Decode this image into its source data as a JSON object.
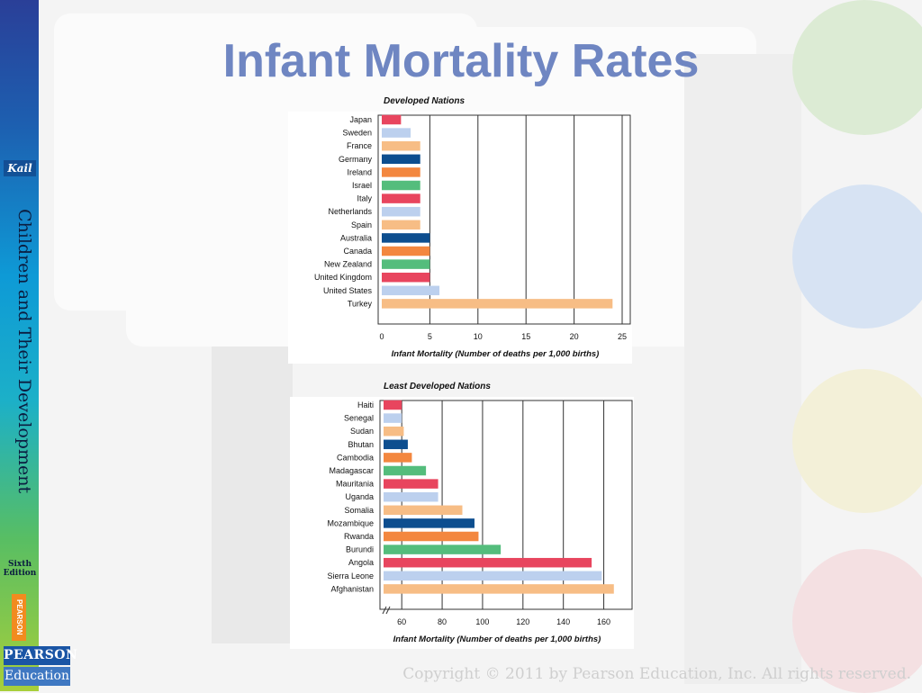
{
  "slide": {
    "title": "Infant Mortality Rates",
    "copyright": "Copyright © 2011 by Pearson Education, Inc. All rights reserved."
  },
  "sidebar": {
    "author": "Kail",
    "book_title": "Children and Their Development",
    "edition_line1": "Sixth",
    "edition_line2": "Edition",
    "publisher_vertical": "PEARSON",
    "logo_top": "PEARSON",
    "logo_bottom": "Education"
  },
  "colors": {
    "red": "#e8455e",
    "light_blue": "#bcd0ee",
    "peach": "#f7bd85",
    "navy": "#0d4e8f",
    "orange": "#f3873f",
    "green": "#54bd7c"
  },
  "chart_data": [
    {
      "type": "bar",
      "orientation": "horizontal",
      "title": "Developed Nations",
      "xlabel": "Infant Mortality (Number of deaths per 1,000 births)",
      "xlim": [
        0,
        25
      ],
      "xticks": [
        0,
        5,
        10,
        15,
        20,
        25
      ],
      "grid": true,
      "categories": [
        "Japan",
        "Sweden",
        "France",
        "Germany",
        "Ireland",
        "Israel",
        "Italy",
        "Netherlands",
        "Spain",
        "Australia",
        "Canada",
        "New Zealand",
        "United Kingdom",
        "United States",
        "Turkey"
      ],
      "values": [
        2,
        3,
        4,
        4,
        4,
        4,
        4,
        4,
        4,
        5,
        5,
        5,
        5,
        6,
        24
      ],
      "bar_colors": [
        "#e8455e",
        "#bcd0ee",
        "#f7bd85",
        "#0d4e8f",
        "#f3873f",
        "#54bd7c",
        "#e8455e",
        "#bcd0ee",
        "#f7bd85",
        "#0d4e8f",
        "#f3873f",
        "#54bd7c",
        "#e8455e",
        "#bcd0ee",
        "#f7bd85"
      ]
    },
    {
      "type": "bar",
      "orientation": "horizontal",
      "title": "Least Developed Nations",
      "xlabel": "Infant Mortality (Number of deaths per 1,000 births)",
      "xlim": [
        51,
        170
      ],
      "xticks": [
        60,
        80,
        100,
        120,
        140,
        160
      ],
      "axis_break": true,
      "grid": true,
      "categories": [
        "Haiti",
        "Senegal",
        "Sudan",
        "Bhutan",
        "Cambodia",
        "Madagascar",
        "Mauritania",
        "Uganda",
        "Somalia",
        "Mozambique",
        "Rwanda",
        "Burundi",
        "Angola",
        "Sierra Leone",
        "Afghanistan"
      ],
      "values": [
        60,
        60,
        61,
        63,
        65,
        72,
        78,
        78,
        90,
        96,
        98,
        109,
        154,
        159,
        165
      ],
      "bar_colors": [
        "#e8455e",
        "#bcd0ee",
        "#f7bd85",
        "#0d4e8f",
        "#f3873f",
        "#54bd7c",
        "#e8455e",
        "#bcd0ee",
        "#f7bd85",
        "#0d4e8f",
        "#f3873f",
        "#54bd7c",
        "#e8455e",
        "#bcd0ee",
        "#f7bd85"
      ]
    }
  ]
}
